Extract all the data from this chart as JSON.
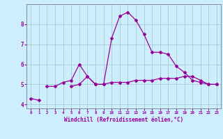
{
  "xlabel": "Windchill (Refroidissement éolien,°C)",
  "background_color": "#cceeff",
  "grid_color": "#aacccc",
  "line_color": "#990099",
  "x_hours": [
    0,
    1,
    2,
    3,
    4,
    5,
    6,
    7,
    8,
    9,
    10,
    11,
    12,
    13,
    14,
    15,
    16,
    17,
    18,
    19,
    20,
    21,
    22,
    23
  ],
  "ylim": [
    3.8,
    9.0
  ],
  "yticks": [
    4,
    5,
    6,
    7,
    8
  ],
  "xlim": [
    -0.5,
    23.5
  ],
  "series_start": [
    4.3,
    4.2,
    null,
    null,
    null,
    null,
    null,
    null,
    null,
    null,
    null,
    null,
    null,
    null,
    null,
    null,
    null,
    null,
    null,
    null,
    null,
    null,
    null,
    null
  ],
  "series_main": [
    null,
    null,
    4.9,
    4.9,
    5.1,
    5.2,
    6.0,
    5.4,
    5.0,
    5.0,
    7.3,
    8.4,
    8.6,
    8.2,
    7.5,
    6.6,
    6.6,
    6.5,
    5.9,
    5.6,
    5.2,
    5.1,
    5.0,
    5.0
  ],
  "series_flat1": [
    null,
    null,
    null,
    null,
    null,
    4.9,
    5.0,
    5.4,
    5.0,
    5.0,
    5.1,
    5.1,
    5.1,
    5.2,
    5.2,
    5.2,
    5.3,
    5.3,
    5.3,
    5.4,
    5.4,
    5.2,
    5.0,
    5.0
  ],
  "series_flat2": [
    null,
    null,
    null,
    null,
    null,
    null,
    null,
    null,
    null,
    null,
    null,
    null,
    null,
    null,
    null,
    null,
    null,
    null,
    null,
    null,
    null,
    null,
    null,
    null
  ]
}
